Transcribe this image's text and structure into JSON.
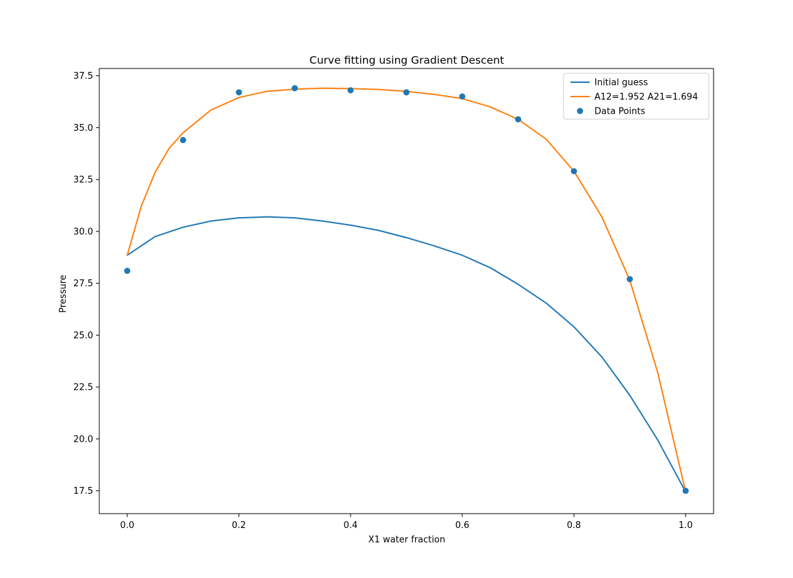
{
  "chart_data": {
    "type": "line",
    "title": "Curve fitting using Gradient Descent",
    "xlabel": "X1 water fraction",
    "ylabel": "Pressure",
    "xlim": [
      -0.05,
      1.05
    ],
    "ylim": [
      16.4,
      37.85
    ],
    "xticks": [
      "0.0",
      "0.2",
      "0.4",
      "0.6",
      "0.8",
      "1.0"
    ],
    "yticks": [
      "17.5",
      "20.0",
      "22.5",
      "25.0",
      "27.5",
      "30.0",
      "32.5",
      "35.0",
      "37.5"
    ],
    "grid": false,
    "legend_position": "upper right",
    "series": [
      {
        "name": "Initial guess",
        "kind": "line",
        "color": "#1f77b4",
        "x": [
          0.0,
          0.05,
          0.1,
          0.15,
          0.2,
          0.25,
          0.3,
          0.35,
          0.4,
          0.45,
          0.5,
          0.55,
          0.6,
          0.65,
          0.7,
          0.75,
          0.8,
          0.85,
          0.9,
          0.95,
          1.0
        ],
        "y": [
          28.85,
          29.75,
          30.2,
          30.5,
          30.65,
          30.7,
          30.65,
          30.5,
          30.3,
          30.05,
          29.7,
          29.3,
          28.85,
          28.25,
          27.45,
          26.55,
          25.4,
          23.95,
          22.1,
          19.95,
          17.45
        ]
      },
      {
        "name": "A12=1.952 A21=1.694",
        "kind": "line",
        "color": "#ff7f0e",
        "x": [
          0.0,
          0.025,
          0.05,
          0.075,
          0.1,
          0.15,
          0.2,
          0.25,
          0.3,
          0.35,
          0.4,
          0.45,
          0.5,
          0.55,
          0.6,
          0.65,
          0.7,
          0.75,
          0.8,
          0.85,
          0.9,
          0.95,
          1.0
        ],
        "y": [
          28.85,
          31.2,
          32.85,
          34.0,
          34.75,
          35.85,
          36.45,
          36.75,
          36.85,
          36.9,
          36.88,
          36.84,
          36.75,
          36.6,
          36.4,
          36.0,
          35.4,
          34.45,
          32.9,
          30.7,
          27.65,
          23.2,
          17.45
        ]
      },
      {
        "name": "Data Points",
        "kind": "scatter",
        "color": "#1f77b4",
        "x": [
          0.0,
          0.1,
          0.2,
          0.3,
          0.4,
          0.5,
          0.6,
          0.7,
          0.8,
          0.9,
          1.0
        ],
        "y": [
          28.1,
          34.4,
          36.7,
          36.9,
          36.8,
          36.7,
          36.5,
          35.4,
          32.9,
          27.7,
          17.5
        ]
      }
    ]
  }
}
